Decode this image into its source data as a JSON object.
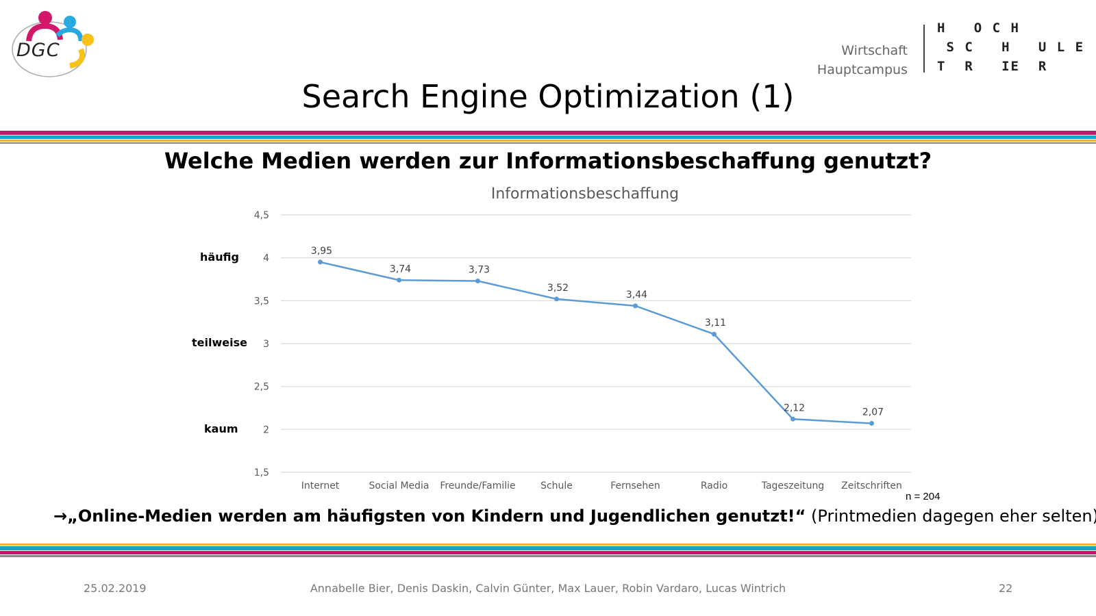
{
  "header": {
    "logo_text": "DGC",
    "department": "Wirtschaft",
    "campus": "Hauptcampus",
    "university_rows": [
      "H   O C H",
      " S C   H   U L E",
      "T  R   IE  R"
    ]
  },
  "slide": {
    "title": "Search Engine Optimization (1)",
    "question": "Welche Medien werden zur Informationsbeschaffung genutzt?",
    "sample_size": "n = 204",
    "conclusion_arrow": "→",
    "conclusion_bold": "„Online-Medien werden am häufigsten von Kindern und Jugendlichen genutzt!“",
    "conclusion_rest": " (Printmedien dagegen eher selten)"
  },
  "qualitative_labels": [
    {
      "text": "häufig",
      "value": 4
    },
    {
      "text": "teilweise",
      "value": 3
    },
    {
      "text": "kaum",
      "value": 2
    }
  ],
  "chart_data": {
    "type": "line",
    "title": "Informationsbeschaffung",
    "categories": [
      "Internet",
      "Social Media",
      "Freunde/Familie",
      "Schule",
      "Fernsehen",
      "Radio",
      "Tageszeitung",
      "Zeitschriften"
    ],
    "values": [
      3.95,
      3.74,
      3.73,
      3.52,
      3.44,
      3.11,
      2.12,
      2.07
    ],
    "data_labels": [
      "3,95",
      "3,74",
      "3,73",
      "3,52",
      "3,44",
      "3,11",
      "2,12",
      "2,07"
    ],
    "y_ticks": [
      1.5,
      2,
      2.5,
      3,
      3.5,
      4,
      4.5
    ],
    "y_tick_labels": [
      "1,5",
      "2",
      "2,5",
      "3",
      "3,5",
      "4",
      "4,5"
    ],
    "ylim": [
      1.5,
      4.5
    ],
    "xlabel": "",
    "ylabel": "",
    "grid": true,
    "line_color": "#5B9BD5"
  },
  "footer": {
    "date": "25.02.2019",
    "authors": "Annabelle Bier, Denis Daskin, Calvin Günter, Max Lauer, Robin Vardaro, Lucas Wintrich",
    "page_number": "22"
  },
  "colors": {
    "band_magenta": "#C0186C",
    "band_cyan": "#1BA3C9",
    "band_yellow": "#E5B83C",
    "band_gray": "#8A8A8A",
    "grid": "#D9D9D9"
  }
}
